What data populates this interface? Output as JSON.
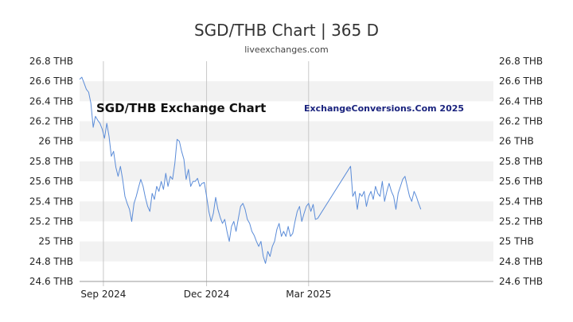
{
  "header": {
    "title": "SGD/THB Chart | 365 D",
    "source": "liveexchanges.com"
  },
  "watermarks": {
    "left": "SGD/THB Exchange Chart",
    "right": "ExchangeConversions.Com 2025"
  },
  "colors": {
    "line": "#5b8cd8",
    "band": "#f2f2f2",
    "grid_v": "#c8c8c8",
    "axis": "#999999"
  },
  "chart_data": {
    "type": "line",
    "title": "SGD/THB Chart | 365 D",
    "xlabel": "",
    "ylabel": "",
    "ylim": [
      24.6,
      26.8
    ],
    "yticks": [
      "26.8 THB",
      "26.6 THB",
      "26.4 THB",
      "26.2 THB",
      "26 THB",
      "25.8 THB",
      "25.6 THB",
      "25.4 THB",
      "25.2 THB",
      "25 THB",
      "24.8 THB",
      "24.6 THB"
    ],
    "ytick_values": [
      26.8,
      26.6,
      26.4,
      26.2,
      26.0,
      25.8,
      25.6,
      25.4,
      25.2,
      25.0,
      24.8,
      24.6
    ],
    "xtick_labels": [
      "Sep 2024",
      "Dec 2024",
      "Mar 2025"
    ],
    "xtick_dates": [
      "2024-09-01",
      "2024-12-01",
      "2025-03-01"
    ],
    "x_range": [
      "2024-08-11",
      "2025-08-11"
    ],
    "grid": "alternating horizontal bands, vertical lines at month ticks",
    "legend": "none",
    "series": [
      {
        "values": [
          [
            "2024-08-11",
            26.62
          ],
          [
            "2024-08-13",
            26.64
          ],
          [
            "2024-08-15",
            26.58
          ],
          [
            "2024-08-17",
            26.52
          ],
          [
            "2024-08-19",
            26.49
          ],
          [
            "2024-08-21",
            26.38
          ],
          [
            "2024-08-23",
            26.14
          ],
          [
            "2024-08-25",
            26.25
          ],
          [
            "2024-08-27",
            26.21
          ],
          [
            "2024-08-29",
            26.18
          ],
          [
            "2024-08-31",
            26.12
          ],
          [
            "2024-09-02",
            26.03
          ],
          [
            "2024-09-04",
            26.18
          ],
          [
            "2024-09-06",
            26.05
          ],
          [
            "2024-09-08",
            25.85
          ],
          [
            "2024-09-10",
            25.9
          ],
          [
            "2024-09-12",
            25.74
          ],
          [
            "2024-09-14",
            25.65
          ],
          [
            "2024-09-16",
            25.75
          ],
          [
            "2024-09-18",
            25.62
          ],
          [
            "2024-09-20",
            25.45
          ],
          [
            "2024-09-22",
            25.38
          ],
          [
            "2024-09-24",
            25.32
          ],
          [
            "2024-09-26",
            25.2
          ],
          [
            "2024-09-28",
            25.38
          ],
          [
            "2024-09-30",
            25.45
          ],
          [
            "2024-10-02",
            25.54
          ],
          [
            "2024-10-04",
            25.62
          ],
          [
            "2024-10-06",
            25.55
          ],
          [
            "2024-10-08",
            25.44
          ],
          [
            "2024-10-10",
            25.35
          ],
          [
            "2024-10-12",
            25.3
          ],
          [
            "2024-10-14",
            25.48
          ],
          [
            "2024-10-16",
            25.42
          ],
          [
            "2024-10-18",
            25.55
          ],
          [
            "2024-10-20",
            25.5
          ],
          [
            "2024-10-22",
            25.6
          ],
          [
            "2024-10-24",
            25.52
          ],
          [
            "2024-10-26",
            25.68
          ],
          [
            "2024-10-28",
            25.55
          ],
          [
            "2024-10-30",
            25.65
          ],
          [
            "2024-11-01",
            25.62
          ],
          [
            "2024-11-03",
            25.78
          ],
          [
            "2024-11-05",
            26.02
          ],
          [
            "2024-11-07",
            26.0
          ],
          [
            "2024-11-09",
            25.9
          ],
          [
            "2024-11-11",
            25.82
          ],
          [
            "2024-11-13",
            25.62
          ],
          [
            "2024-11-15",
            25.72
          ],
          [
            "2024-11-17",
            25.55
          ],
          [
            "2024-11-19",
            25.6
          ],
          [
            "2024-11-21",
            25.6
          ],
          [
            "2024-11-23",
            25.63
          ],
          [
            "2024-11-25",
            25.55
          ],
          [
            "2024-11-27",
            25.58
          ],
          [
            "2024-11-29",
            25.59
          ],
          [
            "2024-12-01",
            25.45
          ],
          [
            "2024-12-03",
            25.3
          ],
          [
            "2024-12-05",
            25.2
          ],
          [
            "2024-12-07",
            25.28
          ],
          [
            "2024-12-09",
            25.44
          ],
          [
            "2024-12-11",
            25.32
          ],
          [
            "2024-12-13",
            25.24
          ],
          [
            "2024-12-15",
            25.18
          ],
          [
            "2024-12-17",
            25.22
          ],
          [
            "2024-12-19",
            25.1
          ],
          [
            "2024-12-21",
            25.0
          ],
          [
            "2024-12-23",
            25.15
          ],
          [
            "2024-12-25",
            25.2
          ],
          [
            "2024-12-27",
            25.1
          ],
          [
            "2024-12-29",
            25.23
          ],
          [
            "2024-12-31",
            25.35
          ],
          [
            "2025-01-02",
            25.38
          ],
          [
            "2025-01-04",
            25.32
          ],
          [
            "2025-01-06",
            25.22
          ],
          [
            "2025-01-08",
            25.18
          ],
          [
            "2025-01-10",
            25.1
          ],
          [
            "2025-01-12",
            25.06
          ],
          [
            "2025-01-14",
            25.0
          ],
          [
            "2025-01-16",
            24.95
          ],
          [
            "2025-01-18",
            25.0
          ],
          [
            "2025-01-20",
            24.85
          ],
          [
            "2025-01-22",
            24.78
          ],
          [
            "2025-01-24",
            24.9
          ],
          [
            "2025-01-26",
            24.85
          ],
          [
            "2025-01-28",
            24.95
          ],
          [
            "2025-01-30",
            25.0
          ],
          [
            "2025-02-01",
            25.12
          ],
          [
            "2025-02-03",
            25.18
          ],
          [
            "2025-02-05",
            25.05
          ],
          [
            "2025-02-07",
            25.1
          ],
          [
            "2025-02-09",
            25.05
          ],
          [
            "2025-02-11",
            25.15
          ],
          [
            "2025-02-13",
            25.05
          ],
          [
            "2025-02-15",
            25.08
          ],
          [
            "2025-02-17",
            25.2
          ],
          [
            "2025-02-19",
            25.3
          ],
          [
            "2025-02-21",
            25.35
          ],
          [
            "2025-02-23",
            25.2
          ],
          [
            "2025-02-25",
            25.28
          ],
          [
            "2025-02-27",
            25.35
          ],
          [
            "2025-03-01",
            25.38
          ],
          [
            "2025-03-03",
            25.3
          ],
          [
            "2025-03-05",
            25.37
          ],
          [
            "2025-03-07",
            25.22
          ],
          [
            "2025-03-09",
            25.23
          ],
          [
            "2025-04-07",
            25.75
          ],
          [
            "2025-04-09",
            25.45
          ],
          [
            "2025-04-11",
            25.5
          ],
          [
            "2025-04-13",
            25.32
          ],
          [
            "2025-04-15",
            25.48
          ],
          [
            "2025-04-17",
            25.45
          ],
          [
            "2025-04-19",
            25.5
          ],
          [
            "2025-04-21",
            25.35
          ],
          [
            "2025-04-23",
            25.45
          ],
          [
            "2025-04-25",
            25.5
          ],
          [
            "2025-04-27",
            25.42
          ],
          [
            "2025-04-29",
            25.55
          ],
          [
            "2025-05-01",
            25.48
          ],
          [
            "2025-05-03",
            25.45
          ],
          [
            "2025-05-05",
            25.6
          ],
          [
            "2025-05-07",
            25.4
          ],
          [
            "2025-05-09",
            25.5
          ],
          [
            "2025-05-11",
            25.58
          ],
          [
            "2025-05-13",
            25.5
          ],
          [
            "2025-05-15",
            25.45
          ],
          [
            "2025-05-17",
            25.32
          ],
          [
            "2025-05-19",
            25.48
          ],
          [
            "2025-05-21",
            25.55
          ],
          [
            "2025-05-23",
            25.62
          ],
          [
            "2025-05-25",
            25.65
          ],
          [
            "2025-05-27",
            25.55
          ],
          [
            "2025-05-29",
            25.45
          ],
          [
            "2025-05-31",
            25.4
          ],
          [
            "2025-06-02",
            25.5
          ],
          [
            "2025-06-04",
            25.45
          ],
          [
            "2025-06-06",
            25.38
          ],
          [
            "2025-06-08",
            25.32
          ]
        ]
      }
    ]
  }
}
